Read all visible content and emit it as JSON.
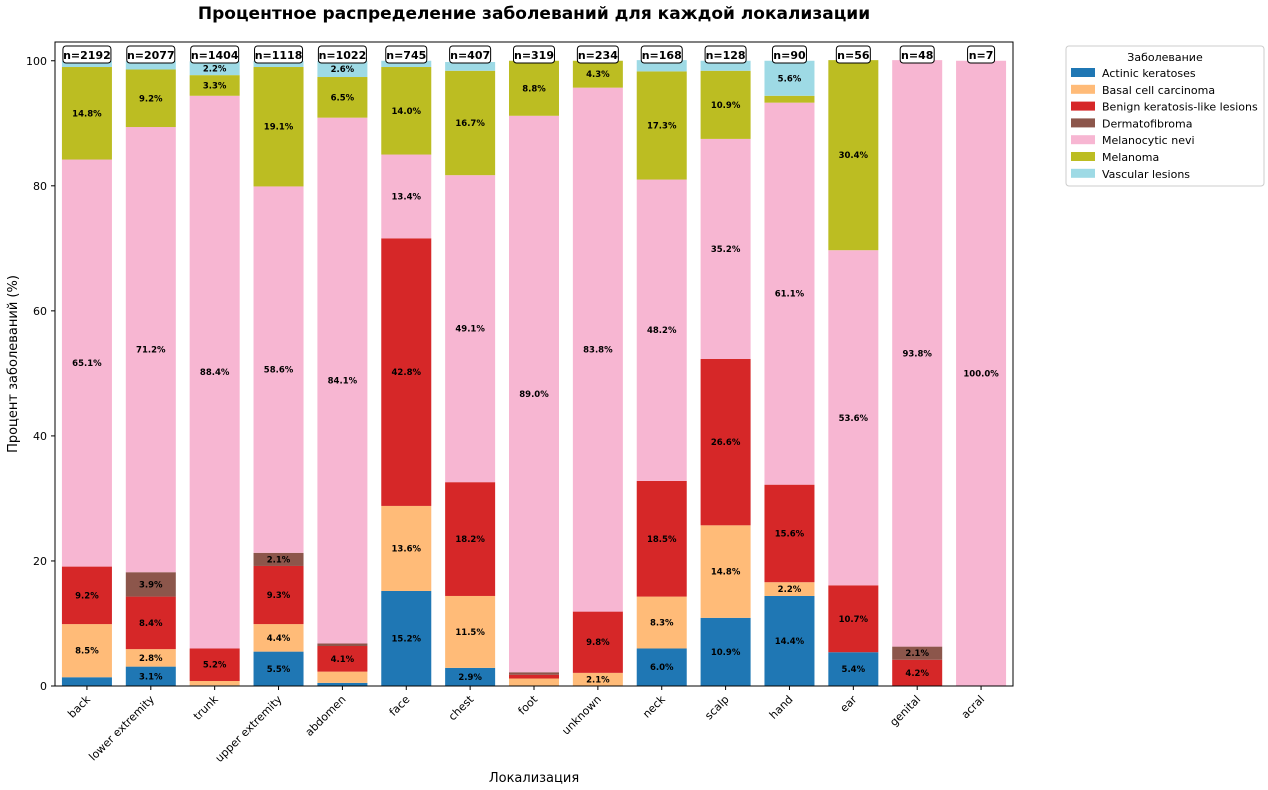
{
  "chart_data": {
    "type": "bar",
    "stacked": true,
    "title": "Процентное распределение заболеваний для каждой локализации",
    "xlabel": "Локализация",
    "ylabel": "Процент заболеваний (%)",
    "ylim": [
      0,
      103
    ],
    "yticks": [
      0,
      20,
      40,
      60,
      80,
      100
    ],
    "grid": false,
    "legend": {
      "title": "Заболевание",
      "placement": "outside-right"
    },
    "categories": [
      "back",
      "lower extremity",
      "trunk",
      "upper extremity",
      "abdomen",
      "face",
      "chest",
      "foot",
      "unknown",
      "neck",
      "scalp",
      "hand",
      "ear",
      "genital",
      "acral"
    ],
    "counts": [
      "n=2192",
      "n=2077",
      "n=1404",
      "n=1118",
      "n=1022",
      "n=745",
      "n=407",
      "n=319",
      "n=234",
      "n=168",
      "n=128",
      "n=90",
      "n=56",
      "n=48",
      "n=7"
    ],
    "series": [
      {
        "name": "Actinic keratoses",
        "color": "#1f77b4",
        "values": [
          1.4,
          3.1,
          0.1,
          5.5,
          0.5,
          15.2,
          2.9,
          0.0,
          0.0,
          6.0,
          10.9,
          14.4,
          5.4,
          0.0,
          0.0
        ],
        "labels": [
          "",
          "3.1%",
          "",
          "5.5%",
          "",
          "15.2%",
          "2.9%",
          "",
          "",
          "6.0%",
          "10.9%",
          "14.4%",
          "5.4%",
          "",
          ""
        ]
      },
      {
        "name": "Basal cell carcinoma",
        "color": "#ffbb78",
        "values": [
          8.5,
          2.8,
          0.7,
          4.4,
          1.8,
          13.6,
          11.5,
          1.2,
          2.1,
          8.3,
          14.8,
          2.2,
          0.0,
          0.0,
          0.0
        ],
        "labels": [
          "8.5%",
          "2.8%",
          "",
          "4.4%",
          "",
          "13.6%",
          "11.5%",
          "",
          "2.1%",
          "8.3%",
          "14.8%",
          "2.2%",
          "",
          "",
          ""
        ]
      },
      {
        "name": "Benign keratosis-like lesions",
        "color": "#d62728",
        "values": [
          9.2,
          8.4,
          5.2,
          9.3,
          4.1,
          42.8,
          18.2,
          0.6,
          9.8,
          18.5,
          26.6,
          15.6,
          10.7,
          4.2,
          0.0
        ],
        "labels": [
          "9.2%",
          "8.4%",
          "5.2%",
          "9.3%",
          "4.1%",
          "42.8%",
          "18.2%",
          "",
          "9.8%",
          "18.5%",
          "26.6%",
          "15.6%",
          "10.7%",
          "4.2%",
          ""
        ]
      },
      {
        "name": "Dermatofibroma",
        "color": "#8c564b",
        "values": [
          0.0,
          3.9,
          0.0,
          2.1,
          0.4,
          0.0,
          0.0,
          0.4,
          0.0,
          0.0,
          0.0,
          0.0,
          0.0,
          2.1,
          0.0
        ],
        "labels": [
          "",
          "3.9%",
          "",
          "2.1%",
          "",
          "",
          "",
          "",
          "",
          "",
          "",
          "",
          "",
          "2.1%",
          ""
        ]
      },
      {
        "name": "Melanocytic nevi",
        "color": "#f7b6d2",
        "values": [
          65.1,
          71.2,
          88.4,
          58.6,
          84.1,
          13.4,
          49.1,
          89.0,
          83.8,
          48.2,
          35.2,
          61.1,
          53.6,
          93.8,
          100.0
        ],
        "labels": [
          "65.1%",
          "71.2%",
          "88.4%",
          "58.6%",
          "84.1%",
          "13.4%",
          "49.1%",
          "89.0%",
          "83.8%",
          "48.2%",
          "35.2%",
          "61.1%",
          "53.6%",
          "93.8%",
          "100.0%"
        ]
      },
      {
        "name": "Melanoma",
        "color": "#bcbd22",
        "values": [
          14.8,
          9.2,
          3.3,
          19.1,
          6.5,
          14.0,
          16.7,
          8.8,
          4.3,
          17.3,
          10.9,
          1.1,
          30.4,
          0.0,
          0.0
        ],
        "labels": [
          "14.8%",
          "9.2%",
          "3.3%",
          "19.1%",
          "6.5%",
          "14.0%",
          "16.7%",
          "8.8%",
          "4.3%",
          "17.3%",
          "10.9%",
          "",
          "30.4%",
          "",
          ""
        ]
      },
      {
        "name": "Vascular lesions",
        "color": "#9edae5",
        "values": [
          1.0,
          1.4,
          2.2,
          1.0,
          2.6,
          1.0,
          1.4,
          0.0,
          0.0,
          1.8,
          1.6,
          5.6,
          0.0,
          0.0,
          0.0
        ],
        "labels": [
          "",
          "",
          "2.2%",
          "",
          "2.6%",
          "",
          "",
          "",
          "",
          "",
          "",
          "5.6%",
          "",
          "",
          ""
        ]
      }
    ]
  }
}
